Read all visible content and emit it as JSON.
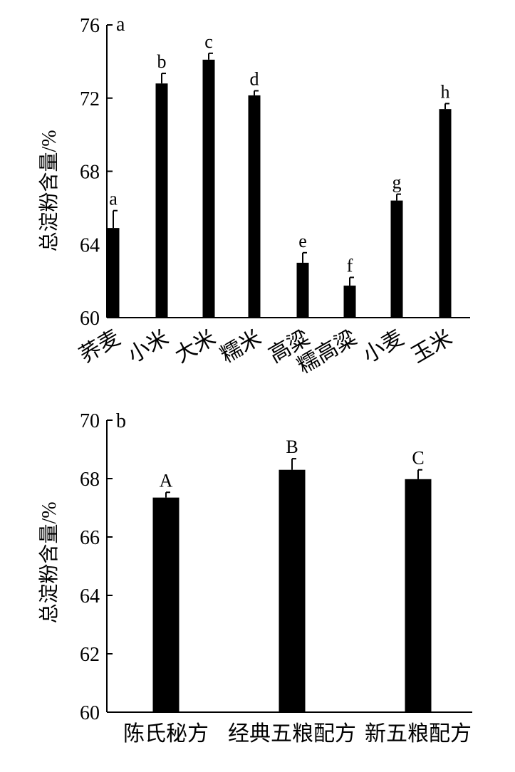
{
  "chart_data": [
    {
      "type": "bar",
      "panel_label": "a",
      "ylabel": "总淀粉含量/%",
      "ylim": [
        60,
        76
      ],
      "yticks": [
        "60",
        "64",
        "68",
        "72",
        "76"
      ],
      "categories": [
        "荞麦",
        "小米",
        "大米",
        "糯米",
        "高粱",
        "糯高粱",
        "小麦",
        "玉米"
      ],
      "values": [
        64.9,
        72.8,
        74.1,
        72.15,
        63.0,
        61.75,
        66.4,
        71.4
      ],
      "errors": [
        0.95,
        0.55,
        0.35,
        0.25,
        0.55,
        0.45,
        0.35,
        0.3
      ],
      "significance": [
        "a",
        "b",
        "c",
        "d",
        "e",
        "f",
        "g",
        "h"
      ],
      "x_labels_rotated": true,
      "bar_color": "#000000"
    },
    {
      "type": "bar",
      "panel_label": "b",
      "ylabel": "总淀粉含量/%",
      "ylim": [
        60,
        70
      ],
      "yticks": [
        "60",
        "62",
        "64",
        "66",
        "68",
        "70"
      ],
      "categories": [
        "陈氏秘方",
        "经典五粮配方",
        "新五粮配方"
      ],
      "values": [
        67.35,
        68.3,
        67.98
      ],
      "errors": [
        0.18,
        0.38,
        0.32
      ],
      "significance": [
        "A",
        "B",
        "C"
      ],
      "x_labels_rotated": false,
      "bar_color": "#000000"
    }
  ]
}
